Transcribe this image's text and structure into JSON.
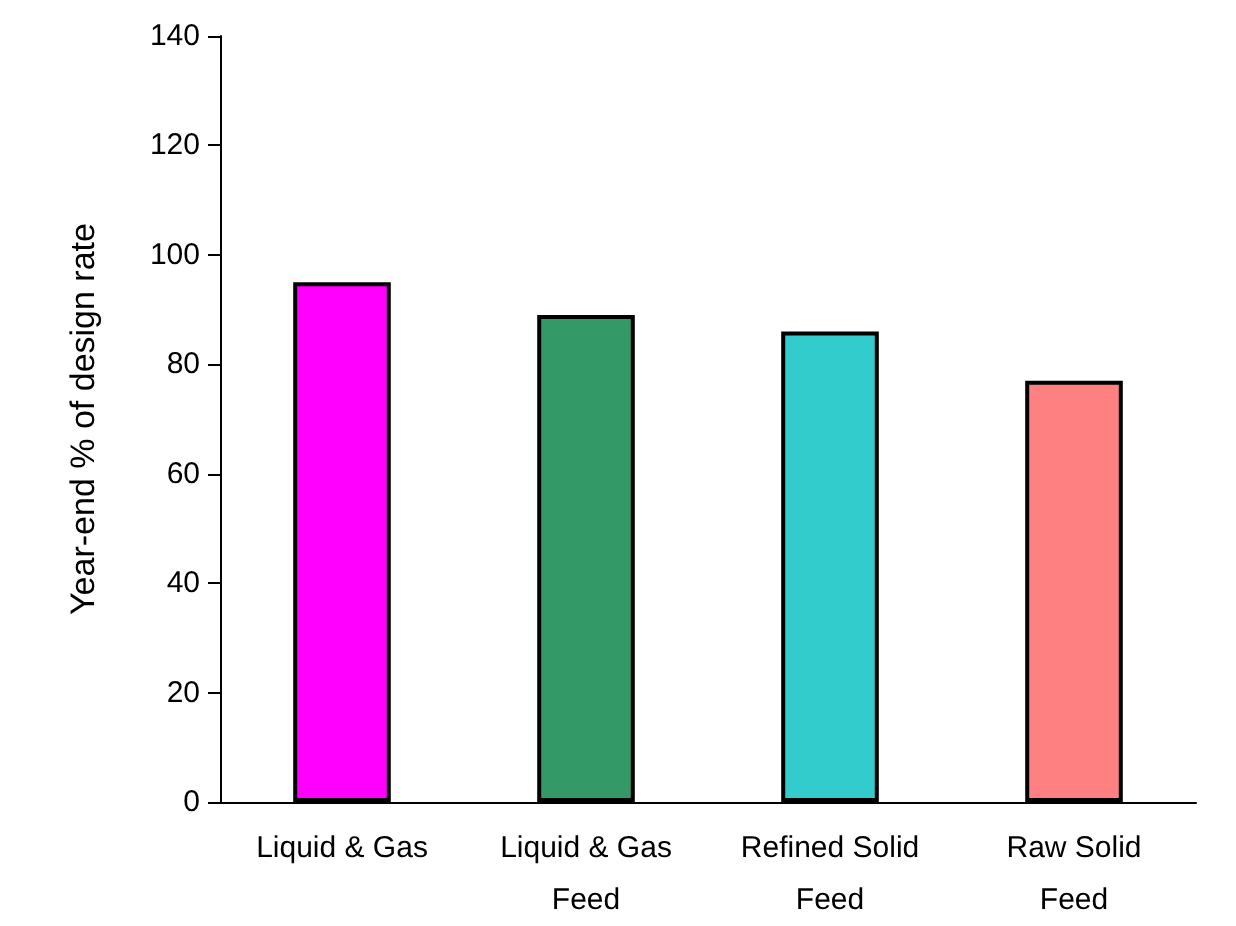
{
  "chart_data": {
    "type": "bar",
    "ylabel": "Year-end % of design rate",
    "categories": [
      "Liquid & Gas",
      "Liquid & Gas\nFeed",
      "Refined Solid\nFeed",
      "Raw Solid\nFeed"
    ],
    "values": [
      95,
      89,
      86,
      77
    ],
    "colors": [
      "#ff00ff",
      "#339966",
      "#33cccc",
      "#ff8080"
    ],
    "ylim": [
      0,
      140
    ],
    "yticks": [
      0,
      20,
      40,
      60,
      80,
      100,
      120,
      140
    ],
    "grid": false
  }
}
